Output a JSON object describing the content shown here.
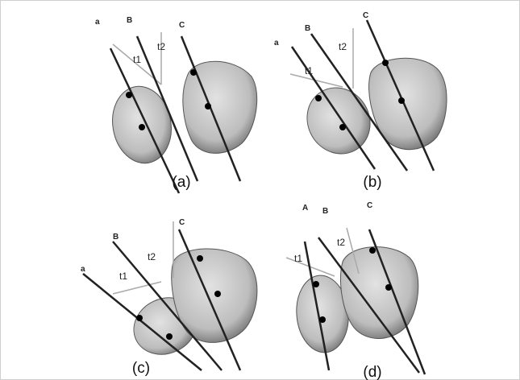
{
  "panels": [
    {
      "caption": "(a)",
      "line_labels": [
        "a",
        "B",
        "C"
      ],
      "angle_labels": [
        "t1",
        "t2"
      ]
    },
    {
      "caption": "(b)",
      "line_labels": [
        "a",
        "B",
        "C"
      ],
      "angle_labels": [
        "t1",
        "t2"
      ]
    },
    {
      "caption": "(c)",
      "line_labels": [
        "a",
        "B",
        "C"
      ],
      "angle_labels": [
        "t1",
        "t2"
      ]
    },
    {
      "caption": "(d)",
      "line_labels": [
        "A",
        "B",
        "C"
      ],
      "angle_labels": [
        "t1",
        "t2"
      ]
    }
  ]
}
